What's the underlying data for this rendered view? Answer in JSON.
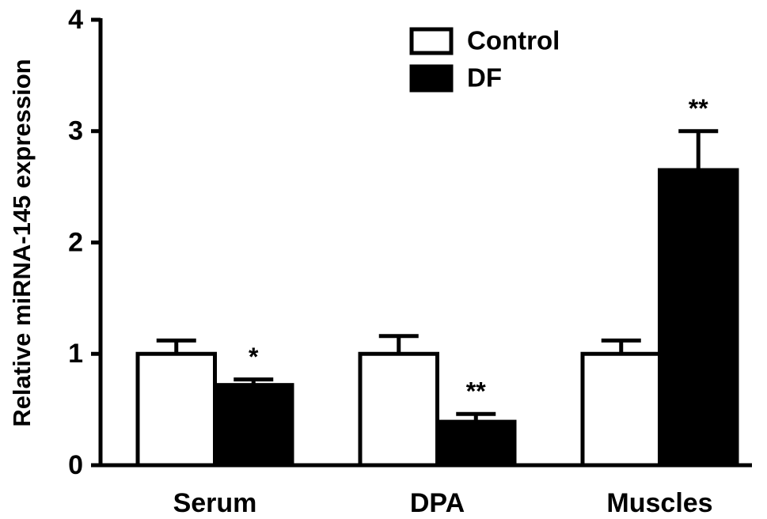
{
  "chart_data": {
    "type": "bar",
    "y_label": "Relative miRNA-145 expression",
    "categories": [
      "Serum",
      "DPA",
      "Muscles"
    ],
    "series": [
      {
        "name": "Control",
        "color": "#ffffff",
        "values": [
          1,
          1,
          1
        ],
        "errors": [
          0.12,
          0.16,
          0.12
        ]
      },
      {
        "name": "DF",
        "color": "#000000",
        "values": [
          0.72,
          0.39,
          2.65
        ],
        "errors": [
          0.05,
          0.07,
          0.35
        ],
        "significance": [
          "*",
          "**",
          "**"
        ]
      }
    ],
    "ylim": [
      0,
      4
    ],
    "yticks": [
      0,
      1,
      2,
      3,
      4
    ],
    "grid": false,
    "legend": "top-right"
  }
}
